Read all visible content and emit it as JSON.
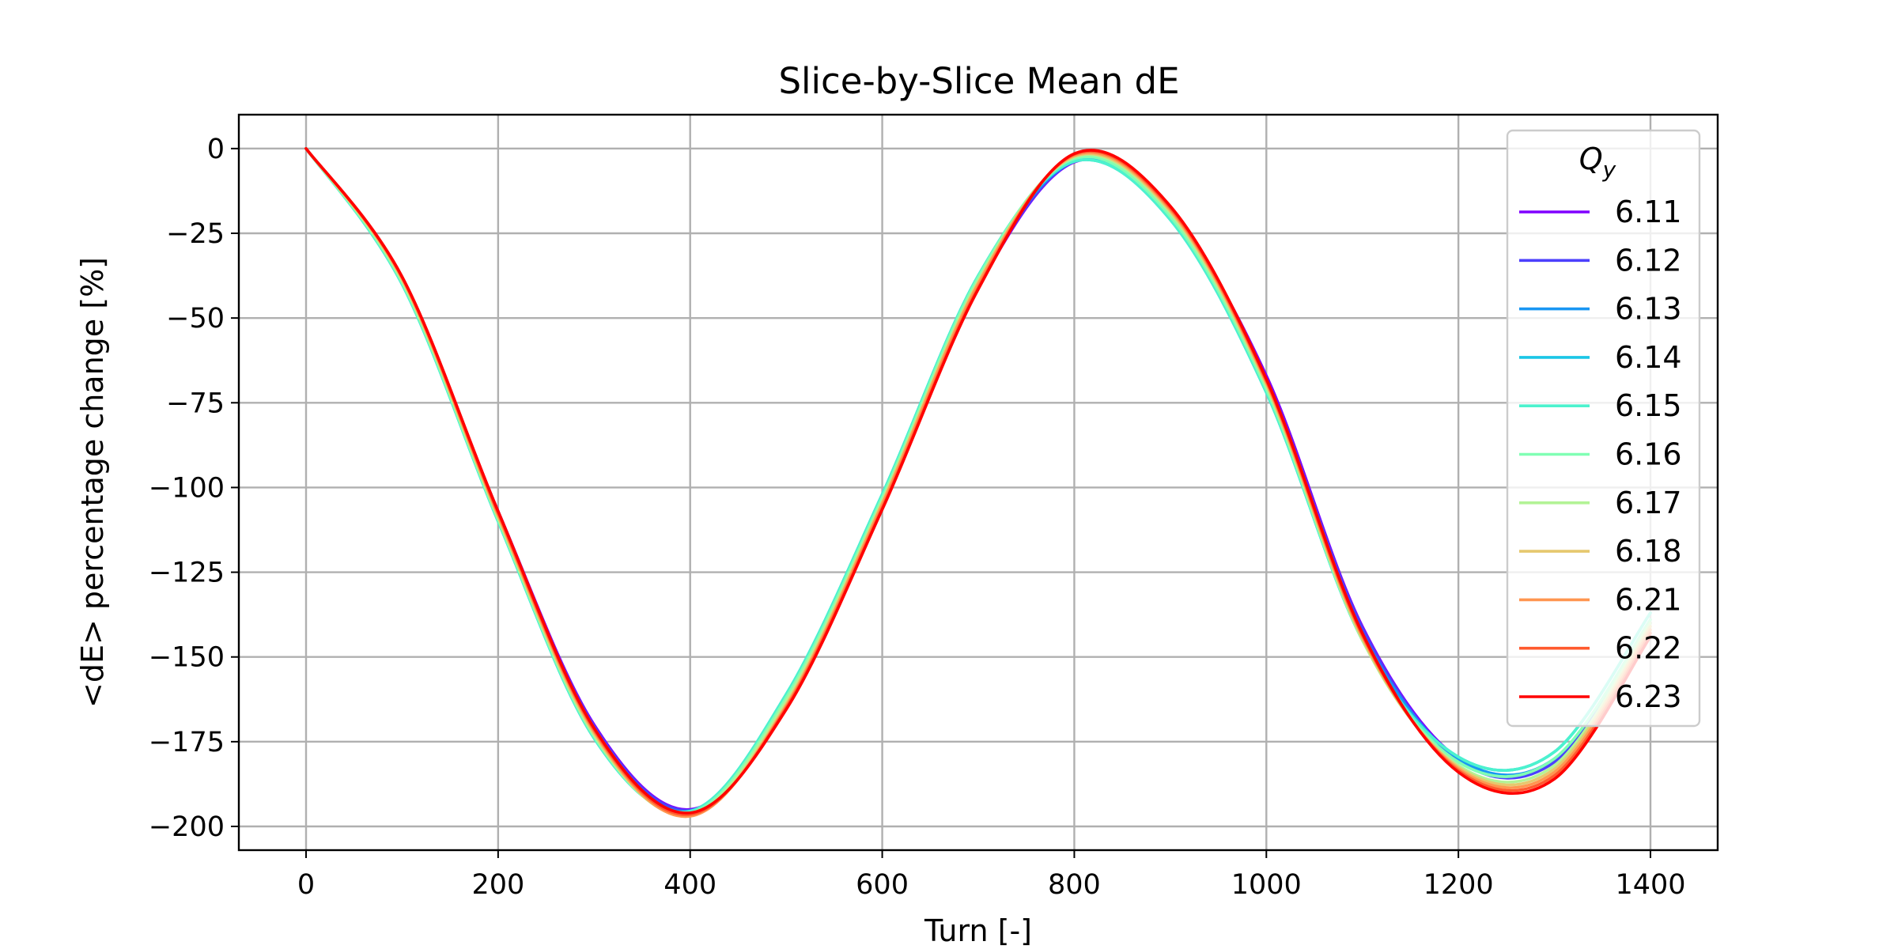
{
  "chart_data": {
    "type": "line",
    "title": "Slice-by-Slice Mean dE",
    "xlabel": "Turn [-]",
    "ylabel": "<dE> percentage change [%]",
    "xlim": [
      -70,
      1470
    ],
    "ylim": [
      -207,
      10
    ],
    "xticks": [
      0,
      200,
      400,
      600,
      800,
      1000,
      1200,
      1400
    ],
    "yticks": [
      0,
      -25,
      -50,
      -75,
      -100,
      -125,
      -150,
      -175,
      -200
    ],
    "xtick_labels": [
      "0",
      "200",
      "400",
      "600",
      "800",
      "1000",
      "1200",
      "1400"
    ],
    "ytick_labels": [
      "0",
      "−25",
      "−50",
      "−75",
      "−100",
      "−125",
      "−150",
      "−175",
      "−200"
    ],
    "grid": true,
    "legend": {
      "title_base": "Q",
      "title_sub": "y",
      "placement": "upper right"
    },
    "x": [
      0,
      100,
      200,
      300,
      400,
      500,
      600,
      700,
      800,
      900,
      1000,
      1100,
      1200,
      1300,
      1400
    ],
    "series": [
      {
        "name": "6.11",
        "color": "#8000ff",
        "values": [
          0,
          -38,
          -107,
          -170,
          -195,
          -165,
          -106,
          -41,
          -4,
          -19,
          -67,
          -141,
          -180,
          -181,
          -140
        ]
      },
      {
        "name": "6.12",
        "color": "#4c40fd",
        "values": [
          0,
          -38.5,
          -107.5,
          -170.5,
          -195.2,
          -164.5,
          -105.5,
          -40.5,
          -3.8,
          -18.5,
          -68,
          -141.5,
          -180.5,
          -181,
          -140
        ]
      },
      {
        "name": "6.13",
        "color": "#1996f3",
        "values": [
          0,
          -39,
          -108.5,
          -172,
          -195.5,
          -163,
          -104,
          -39,
          -3.8,
          -19.5,
          -70,
          -143,
          -180,
          -180,
          -139
        ]
      },
      {
        "name": "6.14",
        "color": "#1ac6e6",
        "values": [
          0,
          -40,
          -110,
          -174,
          -195.5,
          -161,
          -102,
          -37.5,
          -3.8,
          -21,
          -72,
          -145,
          -179.5,
          -178,
          -137
        ]
      },
      {
        "name": "6.15",
        "color": "#4cf2ce",
        "values": [
          0,
          -40,
          -110,
          -174,
          -195.5,
          -161,
          -102,
          -37.5,
          -3.8,
          -21,
          -72,
          -145,
          -179.5,
          -178,
          -137
        ]
      },
      {
        "name": "6.16",
        "color": "#80ffb4",
        "values": [
          0,
          -39.5,
          -109.5,
          -173.5,
          -196,
          -162,
          -103,
          -38,
          -3,
          -20,
          -71,
          -145,
          -181,
          -180,
          -139
        ]
      },
      {
        "name": "6.17",
        "color": "#b3f396",
        "values": [
          0,
          -39,
          -109,
          -173,
          -196.5,
          -163,
          -104,
          -39,
          -2.5,
          -19,
          -70,
          -145,
          -182,
          -182,
          -140
        ]
      },
      {
        "name": "6.18",
        "color": "#e6c86e",
        "values": [
          0,
          -38.5,
          -108.5,
          -172.5,
          -196.8,
          -164,
          -104.5,
          -39.5,
          -2.3,
          -18.5,
          -69.5,
          -144.5,
          -182.5,
          -183,
          -141
        ]
      },
      {
        "name": "6.21",
        "color": "#ff9650",
        "values": [
          0,
          -38.2,
          -108,
          -172,
          -197,
          -164.5,
          -105,
          -40,
          -2,
          -18,
          -69,
          -144,
          -183,
          -184,
          -142
        ]
      },
      {
        "name": "6.22",
        "color": "#ff5a2e",
        "values": [
          0,
          -38,
          -107.5,
          -171.5,
          -196.5,
          -165,
          -106,
          -41,
          -1.7,
          -17.5,
          -68.5,
          -143.5,
          -183.5,
          -185,
          -143
        ]
      },
      {
        "name": "6.23",
        "color": "#ff0000",
        "values": [
          0,
          -37.8,
          -107,
          -171,
          -196,
          -165.5,
          -106.5,
          -41.5,
          -1.5,
          -17,
          -68,
          -143,
          -184,
          -186,
          -144
        ]
      }
    ]
  }
}
